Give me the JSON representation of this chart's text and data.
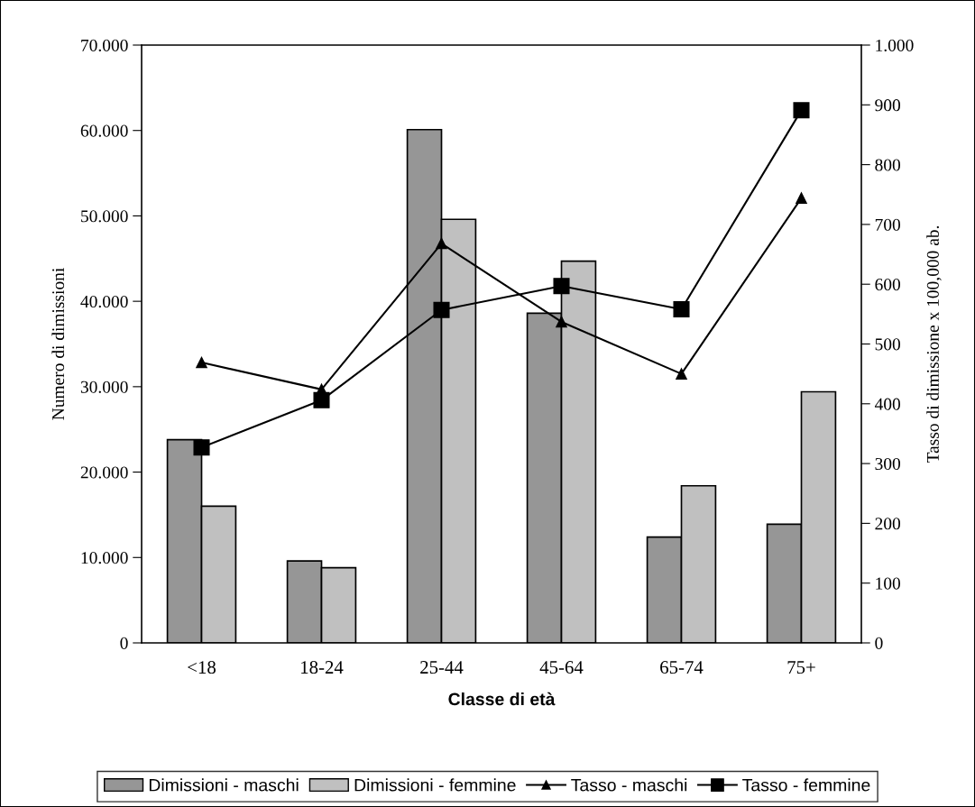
{
  "chart_data": {
    "type": "bar",
    "categories": [
      "<18",
      "18-24",
      "25-44",
      "45-64",
      "65-74",
      "75+"
    ],
    "xlabel": "Classe di età",
    "ylabel": "Numero di dimissioni",
    "y2label": "Tasso di dimissione x 100,000 ab.",
    "series": [
      {
        "name": "Dimissioni - maschi",
        "color": "#969696",
        "values": [
          23800,
          9600,
          60100,
          38600,
          12400,
          13900
        ]
      },
      {
        "name": "Dimissioni - femmine",
        "color": "#c0c0c0",
        "values": [
          16000,
          8800,
          49600,
          44700,
          18400,
          29400
        ]
      },
      {
        "name": "Tasso - maschi",
        "type": "line",
        "axis": "y2",
        "color": "#000000",
        "marker": "triangle",
        "values": [
          469,
          424,
          668,
          537,
          450,
          744
        ]
      },
      {
        "name": "Tasso - femmine",
        "type": "line",
        "axis": "y2",
        "color": "#000000",
        "marker": "square",
        "values": [
          327,
          406,
          557,
          597,
          558,
          891
        ]
      }
    ],
    "ylim": [
      0,
      70000
    ],
    "yticks": [
      0,
      {
        "value": 10000,
        "label": "10.000"
      },
      {
        "value": 20000,
        "label": "20.000"
      },
      {
        "value": 30000,
        "label": "30.000"
      },
      {
        "value": 40000,
        "label": "40.000"
      },
      {
        "value": 50000,
        "label": "50.000"
      },
      {
        "value": 60000,
        "label": "60.000"
      },
      {
        "value": 70000,
        "label": "70.000"
      }
    ],
    "y2lim": [
      0,
      1000
    ],
    "y2ticks": [
      0,
      100,
      200,
      300,
      400,
      500,
      600,
      700,
      800,
      900,
      {
        "value": 1000,
        "label": "1.000"
      }
    ],
    "legend": "bottom",
    "grid": false
  }
}
